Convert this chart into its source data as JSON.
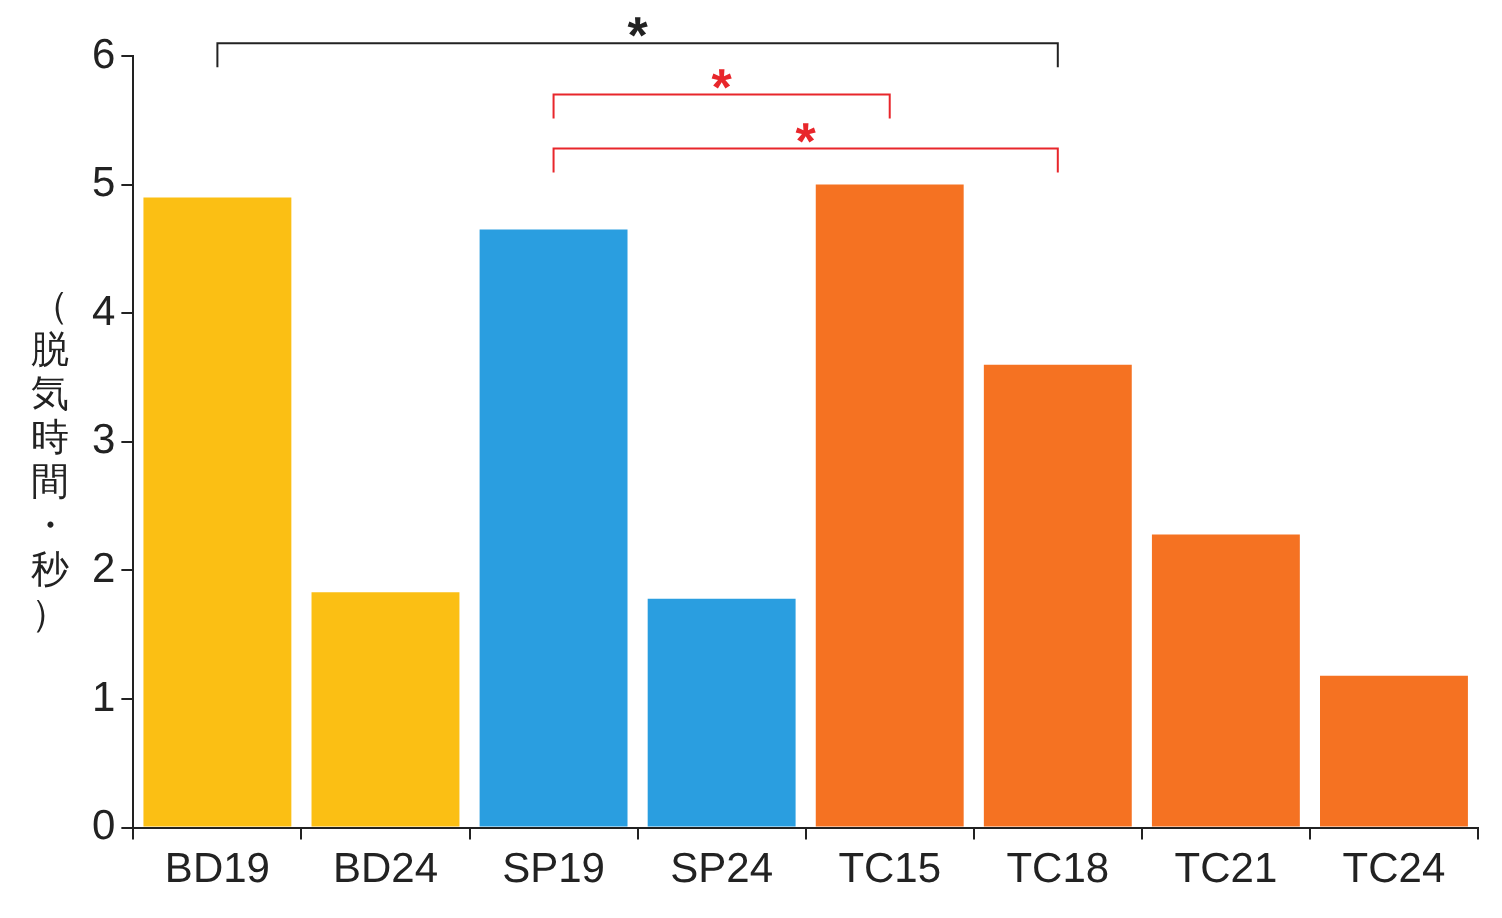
{
  "chart_data": {
    "type": "bar",
    "ylabel": "（脱気時間・秒）",
    "categories": [
      "BD19",
      "BD24",
      "SP19",
      "SP24",
      "TC15",
      "TC18",
      "TC21",
      "TC24"
    ],
    "values": [
      4.9,
      1.83,
      4.65,
      1.78,
      5.0,
      3.6,
      2.28,
      1.18
    ],
    "colors": [
      "#fbbf14",
      "#fbbf14",
      "#2a9ee0",
      "#2a9ee0",
      "#f57222",
      "#f57222",
      "#f57222",
      "#f57222"
    ],
    "ylim": [
      0,
      6
    ],
    "yticks": [
      0,
      1,
      2,
      3,
      4,
      5,
      6
    ],
    "grid": false,
    "annotations": [
      "*",
      "*",
      "*"
    ]
  }
}
